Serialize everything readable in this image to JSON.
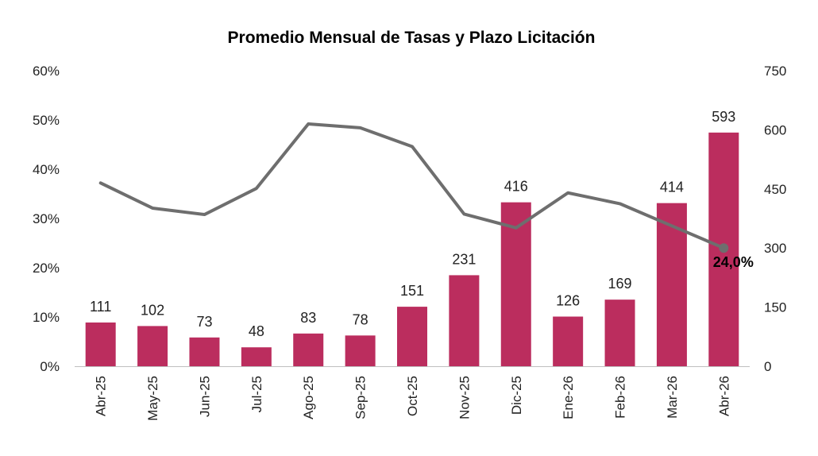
{
  "chart_data": {
    "type": "bar",
    "title": "Promedio Mensual de Tasas y Plazo Licitación",
    "xlabel": "",
    "ylabel": "",
    "categories": [
      "Abr-25",
      "May-25",
      "Jun-25",
      "Jul-25",
      "Ago-25",
      "Sep-25",
      "Oct-25",
      "Nov-25",
      "Dic-25",
      "Ene-26",
      "Feb-26",
      "Mar-26",
      "Abr-26"
    ],
    "series": [
      {
        "type": "bar",
        "axis": "right",
        "color": "#bb2d5e",
        "values": [
          111,
          102,
          73,
          48,
          83,
          78,
          151,
          231,
          416,
          126,
          169,
          414,
          593
        ],
        "data_labels": [
          "111",
          "102",
          "73",
          "48",
          "83",
          "78",
          "151",
          "231",
          "416",
          "126",
          "169",
          "414",
          "593"
        ]
      },
      {
        "type": "line",
        "axis": "left",
        "color": "#6e6e6e",
        "values": [
          37.2,
          32.1,
          30.8,
          36.1,
          49.2,
          48.4,
          44.6,
          30.9,
          28.1,
          35.2,
          33.0,
          28.5,
          24.0
        ],
        "last_point_label": "24,0%"
      }
    ],
    "left_axis": {
      "ylim": [
        0,
        60
      ],
      "ticks": [
        "0%",
        "10%",
        "20%",
        "30%",
        "40%",
        "50%",
        "60%"
      ]
    },
    "right_axis": {
      "ylim": [
        0,
        750
      ],
      "ticks": [
        "0",
        "150",
        "300",
        "450",
        "600",
        "750"
      ]
    },
    "grid": false,
    "legend": "none"
  }
}
